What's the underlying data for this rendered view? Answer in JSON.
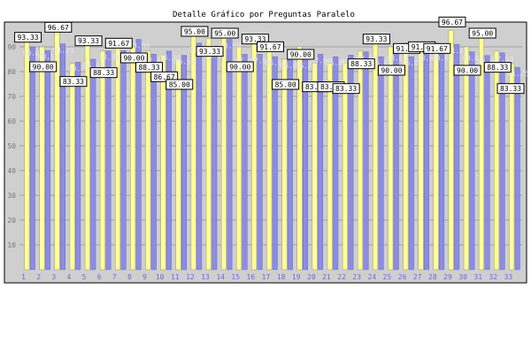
{
  "chart_data": {
    "type": "bar",
    "title": "Detalle Gráfico por Preguntas Paralelo",
    "xlabel": "",
    "ylabel": "",
    "ylim": [
      0,
      100
    ],
    "yticks": [
      "10",
      "20",
      "30",
      "40",
      "50",
      "60",
      "70",
      "80",
      "90"
    ],
    "categories": [
      "1",
      "2",
      "3",
      "4",
      "5",
      "6",
      "7",
      "8",
      "9",
      "10",
      "11",
      "12",
      "13",
      "14",
      "15",
      "16",
      "17",
      "18",
      "19",
      "20",
      "21",
      "22",
      "23",
      "24",
      "25",
      "26",
      "27",
      "28",
      "29",
      "30",
      "31",
      "32",
      "33"
    ],
    "grid": true,
    "legend": "none",
    "colors": {
      "yellow_bar": "#ffff99",
      "blue_bar": "#8c8ce6",
      "plot_background": "#cfcfcf",
      "tick_text": "#7a7a7a",
      "category_text": "#6c6cd8"
    },
    "series": [
      {
        "values": [
          93.33,
          90.0,
          96.67,
          83.33,
          93.33,
          88.33,
          91.67,
          90.0,
          88.33,
          86.67,
          85.0,
          95.0,
          93.33,
          95.0,
          90.0,
          93.33,
          91.67,
          85.0,
          90.0,
          83.33,
          83.33,
          83.33,
          88.33,
          93.33,
          90.0,
          91.67,
          91.67,
          91.67,
          96.67,
          90.0,
          95.0,
          88.33,
          83.33
        ]
      },
      {
        "values": [
          90.0,
          88.5,
          91.21,
          83.79,
          85.0,
          88.33,
          88.5,
          93.0,
          87.0,
          88.3,
          86.57,
          91.5,
          89.0,
          93.0,
          87.0,
          87.0,
          86.0,
          85.0,
          85.0,
          87.0,
          86.0,
          86.67,
          88.0,
          86.0,
          88.0,
          86.0,
          88.0,
          88.0,
          91.0,
          88.0,
          86.5,
          87.6,
          81.75
        ]
      }
    ],
    "annotations": [
      "93.33",
      "90.00",
      "96.67",
      "83.33",
      "93.33",
      "88.33",
      "91.67",
      "90.00",
      "88.33",
      "86.67",
      "85.00",
      "95.00",
      "93.33",
      "95.00",
      "90.00",
      "93.33",
      "91.67",
      "85.00",
      "90.00",
      "83.33",
      "83.33",
      "83.33",
      "88.33",
      "93.33",
      "90.00",
      "91.67",
      "91.67",
      "91.67",
      "96.67",
      "90.00",
      "95.00",
      "88.33",
      "83.33"
    ],
    "blue_annotations": [
      "90.00",
      "88.50",
      "91.21",
      "83.79",
      "85.00",
      "88.33",
      "88.50",
      "93.00",
      "87.00",
      "88.30",
      "86.57",
      "91.50",
      "89.00",
      "93.00",
      "87.00",
      "87.00",
      "86.00",
      "85.00",
      "85.00",
      "87.00",
      "86.00",
      "86.67",
      "88.00",
      "86.00",
      "88.00",
      "86.00",
      "88.00",
      "88.00",
      "91.00",
      "88.00",
      "86.50",
      "87.60",
      "81.75"
    ]
  }
}
